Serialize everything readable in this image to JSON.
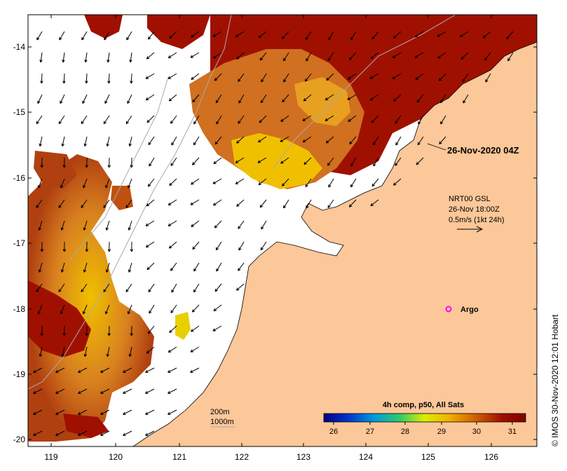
{
  "map": {
    "date_label": "26-Nov-2020 04Z",
    "current_source": "NRT00 GSL",
    "current_time": "26-Nov 18:00Z",
    "current_scale": "0.5m/s (1kt 24h)",
    "argo_label": "Argo",
    "depth_contours": [
      "200m",
      "1000m"
    ],
    "credit": "© IMOS 30-Nov-2020 12:01 Hobart",
    "lon_ticks": [
      "119",
      "120",
      "121",
      "122",
      "123",
      "124",
      "125",
      "126"
    ],
    "lat_ticks": [
      "-14",
      "-15",
      "-16",
      "-17",
      "-18",
      "-19",
      "-20"
    ],
    "colorbar": {
      "title": "4h comp, p50, All Sats",
      "ticks": [
        "26",
        "27",
        "28",
        "29",
        "30",
        "31"
      ],
      "colors": [
        "#000080",
        "#0033cc",
        "#0099dd",
        "#33cc66",
        "#ddee00",
        "#f0b000",
        "#d06000",
        "#a01000",
        "#800000"
      ]
    },
    "colors": {
      "land": "#fcc799",
      "sst_hot": "#a01000",
      "sst_warm": "#d07020",
      "sst_mid": "#e8a020",
      "sst_cool": "#f0d000",
      "argo": "#ff00ff"
    }
  }
}
